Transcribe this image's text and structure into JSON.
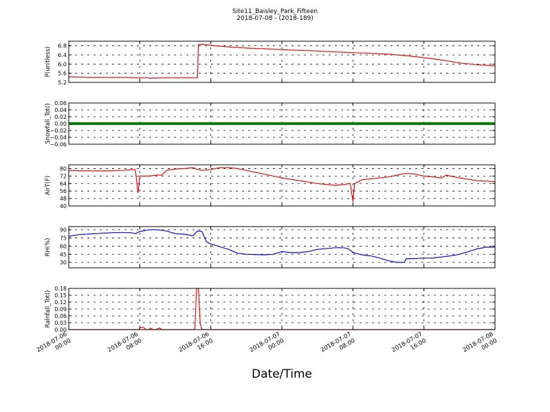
{
  "figure": {
    "title": "Site11_Baisley_Park_Fifteen",
    "subtitle": "2018-07-08 - (2018-189)",
    "xlabel": "Date/Time",
    "x_ticks": [
      "2018-07-06\n00:00",
      "2018-07-06\n08:00",
      "2018-07-06\n16:00",
      "2018-07-07\n00:00",
      "2018-07-07\n08:00",
      "2018-07-07\n16:00",
      "2018-07-08\n00:00"
    ],
    "x_range_hours": [
      0,
      48
    ]
  },
  "chart_data": [
    {
      "type": "line",
      "ylabel": "P(unitless)",
      "color": "#ff0000",
      "ylim": [
        5.2,
        7.0
      ],
      "yticks": [
        "5.2",
        "5.6",
        "6.0",
        "6.4",
        "6.8"
      ],
      "grid": true,
      "x": [
        0,
        2,
        2.1,
        7,
        7.1,
        9,
        9.1,
        10.5,
        14.5,
        14.6,
        15,
        16,
        17,
        18,
        20,
        22,
        24,
        26,
        28,
        30,
        32,
        34,
        36,
        38,
        40,
        42,
        44,
        46,
        48
      ],
      "y": [
        5.44,
        5.43,
        5.42,
        5.42,
        5.4,
        5.4,
        5.38,
        5.4,
        5.4,
        6.85,
        6.87,
        6.82,
        6.78,
        6.75,
        6.7,
        6.67,
        6.63,
        6.6,
        6.57,
        6.53,
        6.5,
        6.47,
        6.43,
        6.37,
        6.28,
        6.18,
        6.05,
        5.97,
        5.92
      ]
    },
    {
      "type": "line",
      "ylabel": "Snowfall_Tot()",
      "color": "#008000",
      "ylim": [
        -0.06,
        0.06
      ],
      "yticks": [
        "−0.06",
        "−0.04",
        "−0.02",
        "0.00",
        "0.02",
        "0.04",
        "0.06"
      ],
      "grid": true,
      "x": [
        0,
        48
      ],
      "y": [
        0,
        0
      ]
    },
    {
      "type": "line",
      "ylabel": "AirT(F)",
      "color": "#ff0000",
      "ylim": [
        40,
        84
      ],
      "yticks": [
        "40",
        "48",
        "56",
        "64",
        "72",
        "80"
      ],
      "grid": true,
      "x": [
        0,
        2,
        4,
        6,
        7.5,
        7.8,
        8,
        8.2,
        9,
        10,
        10.5,
        11,
        12,
        13,
        14,
        14.5,
        15,
        16,
        17,
        18,
        19,
        20,
        22,
        24,
        26,
        28,
        30,
        31,
        31.7,
        32,
        32.2,
        33,
        34,
        36,
        37,
        38,
        39,
        40,
        41,
        42,
        42.5,
        43,
        44,
        46,
        48
      ],
      "y": [
        78,
        77.5,
        77.5,
        78,
        79,
        54,
        72,
        72,
        72,
        73,
        73,
        78,
        79.5,
        80,
        81,
        79,
        78,
        79,
        81,
        81,
        80,
        78,
        74,
        70,
        67,
        64,
        62,
        63,
        64,
        45,
        64,
        68,
        69,
        71,
        73,
        75,
        74,
        72,
        71,
        70,
        73,
        72,
        70,
        67,
        66
      ]
    },
    {
      "type": "line",
      "ylabel": "RH(%)",
      "color": "#0000ff",
      "ylim": [
        20,
        96
      ],
      "yticks": [
        "30",
        "45",
        "60",
        "75",
        "90"
      ],
      "grid": true,
      "x": [
        0,
        1,
        3,
        5,
        7,
        7.5,
        8,
        9,
        10,
        11,
        12,
        13,
        14,
        14.5,
        15,
        15.5,
        16,
        18,
        19,
        20,
        22,
        23,
        24,
        25,
        26,
        27,
        28,
        30,
        31,
        31.5,
        32,
        33,
        34,
        35,
        36,
        37,
        37.8,
        38,
        39,
        40,
        41,
        42,
        43,
        44,
        45,
        46,
        47,
        48
      ],
      "y": [
        78,
        81,
        83,
        85,
        85,
        83,
        87,
        90,
        90,
        88,
        83,
        82,
        79,
        88,
        87,
        68,
        64,
        54,
        47,
        45,
        44,
        45,
        50,
        48,
        48,
        50,
        54,
        57,
        57,
        55,
        48,
        44,
        42,
        38,
        33,
        30,
        30,
        37,
        37,
        38,
        38,
        40,
        42,
        45,
        50,
        55,
        58,
        58
      ]
    },
    {
      "type": "line",
      "ylabel": "Rainfall_Tot()",
      "color": "#ff0000",
      "ylim": [
        0,
        0.18
      ],
      "yticks": [
        "0.00",
        "0.03",
        "0.06",
        "0.09",
        "0.12",
        "0.15",
        "0.18"
      ],
      "grid": true,
      "x": [
        0,
        7.9,
        8.1,
        8.4,
        8.7,
        9,
        9.2,
        9.5,
        9.8,
        10.2,
        10.5,
        10.8,
        14.2,
        14.4,
        14.6,
        14.8,
        15,
        48
      ],
      "y": [
        0,
        0,
        0.01,
        0.01,
        0,
        0,
        0.006,
        0,
        0,
        0.007,
        0,
        0,
        0,
        0.18,
        0.18,
        0.03,
        0,
        0
      ]
    }
  ]
}
